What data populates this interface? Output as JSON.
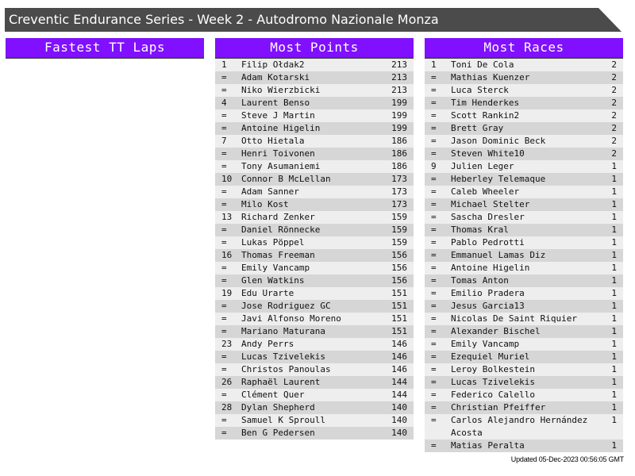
{
  "title": "Creventic Endurance Series - Week 2 - Autodromo Nazionale Monza",
  "colors": {
    "header_bg": "#8010ff",
    "title_bg": "#4b4b4b",
    "row_light": "#eeeeee",
    "row_dark": "#d6d6d6"
  },
  "panels": [
    {
      "title": "Fastest TT Laps",
      "rows": []
    },
    {
      "title": "Most Points",
      "rows": [
        {
          "rank": "1",
          "name": "Filip Ołdak2",
          "value": "213"
        },
        {
          "rank": "=",
          "name": "Adam Kotarski",
          "value": "213"
        },
        {
          "rank": "=",
          "name": "Niko Wierzbicki",
          "value": "213"
        },
        {
          "rank": "4",
          "name": "Laurent Benso",
          "value": "199"
        },
        {
          "rank": "=",
          "name": "Steve J Martin",
          "value": "199"
        },
        {
          "rank": "=",
          "name": "Antoine Higelin",
          "value": "199"
        },
        {
          "rank": "7",
          "name": "Otto Hietala",
          "value": "186"
        },
        {
          "rank": "=",
          "name": "Henri Toivonen",
          "value": "186"
        },
        {
          "rank": "=",
          "name": "Tony Asumaniemi",
          "value": "186"
        },
        {
          "rank": "10",
          "name": "Connor B McLellan",
          "value": "173"
        },
        {
          "rank": "=",
          "name": "Adam Sanner",
          "value": "173"
        },
        {
          "rank": "=",
          "name": "Milo Kost",
          "value": "173"
        },
        {
          "rank": "13",
          "name": "Richard Zenker",
          "value": "159"
        },
        {
          "rank": "=",
          "name": "Daniel Rönnecke",
          "value": "159"
        },
        {
          "rank": "=",
          "name": "Lukas Pöppel",
          "value": "159"
        },
        {
          "rank": "16",
          "name": "Thomas Freeman",
          "value": "156"
        },
        {
          "rank": "=",
          "name": "Emily Vancamp",
          "value": "156"
        },
        {
          "rank": "=",
          "name": "Glen Watkins",
          "value": "156"
        },
        {
          "rank": "19",
          "name": "Edu Urarte",
          "value": "151"
        },
        {
          "rank": "=",
          "name": "Jose Rodriguez GC",
          "value": "151"
        },
        {
          "rank": "=",
          "name": "Javi Alfonso Moreno",
          "value": "151"
        },
        {
          "rank": "=",
          "name": "Mariano Maturana",
          "value": "151"
        },
        {
          "rank": "23",
          "name": "Andy Perrs",
          "value": "146"
        },
        {
          "rank": "=",
          "name": "Lucas Tzivelekis",
          "value": "146"
        },
        {
          "rank": "=",
          "name": "Christos Panoulas",
          "value": "146"
        },
        {
          "rank": "26",
          "name": "Raphaël Laurent",
          "value": "144"
        },
        {
          "rank": "=",
          "name": "Clément Quer",
          "value": "144"
        },
        {
          "rank": "28",
          "name": "Dylan Shepherd",
          "value": "140"
        },
        {
          "rank": "=",
          "name": "Samuel K Sproull",
          "value": "140"
        },
        {
          "rank": "=",
          "name": "Ben G Pedersen",
          "value": "140"
        }
      ]
    },
    {
      "title": "Most Races",
      "rows": [
        {
          "rank": "1",
          "name": "Toni De Cola",
          "value": "2"
        },
        {
          "rank": "=",
          "name": "Mathias Kuenzer",
          "value": "2"
        },
        {
          "rank": "=",
          "name": "Luca Sterck",
          "value": "2"
        },
        {
          "rank": "=",
          "name": "Tim Henderkes",
          "value": "2"
        },
        {
          "rank": "=",
          "name": "Scott Rankin2",
          "value": "2"
        },
        {
          "rank": "=",
          "name": "Brett Gray",
          "value": "2"
        },
        {
          "rank": "=",
          "name": "Jason Dominic Beck",
          "value": "2"
        },
        {
          "rank": "=",
          "name": "Steven White10",
          "value": "2"
        },
        {
          "rank": "9",
          "name": "Julien Leger",
          "value": "1"
        },
        {
          "rank": "=",
          "name": "Heberley Telemaque",
          "value": "1"
        },
        {
          "rank": "=",
          "name": "Caleb Wheeler",
          "value": "1"
        },
        {
          "rank": "=",
          "name": "Michael Stelter",
          "value": "1"
        },
        {
          "rank": "=",
          "name": "Sascha Dresler",
          "value": "1"
        },
        {
          "rank": "=",
          "name": "Thomas Kral",
          "value": "1"
        },
        {
          "rank": "=",
          "name": "Pablo Pedrotti",
          "value": "1"
        },
        {
          "rank": "=",
          "name": "Emmanuel Lamas Diz",
          "value": "1"
        },
        {
          "rank": "=",
          "name": "Antoine Higelin",
          "value": "1"
        },
        {
          "rank": "=",
          "name": "Tomas Anton",
          "value": "1"
        },
        {
          "rank": "=",
          "name": "Emilio Pradera",
          "value": "1"
        },
        {
          "rank": "=",
          "name": "Jesus Garcia13",
          "value": "1"
        },
        {
          "rank": "=",
          "name": "Nicolas De Saint Riquier",
          "value": "1"
        },
        {
          "rank": "=",
          "name": "Alexander Bischel",
          "value": "1"
        },
        {
          "rank": "=",
          "name": "Emily Vancamp",
          "value": "1"
        },
        {
          "rank": "=",
          "name": "Ezequiel Muriel",
          "value": "1"
        },
        {
          "rank": "=",
          "name": "Leroy Bolkestein",
          "value": "1"
        },
        {
          "rank": "=",
          "name": "Lucas Tzivelekis",
          "value": "1"
        },
        {
          "rank": "=",
          "name": "Federico Calello",
          "value": "1"
        },
        {
          "rank": "=",
          "name": "Christian Pfeiffer",
          "value": "1"
        },
        {
          "rank": "=",
          "name": "Carlos Alejandro Hernández Acosta",
          "value": "1"
        },
        {
          "rank": "=",
          "name": "Matias Peralta",
          "value": "1"
        }
      ]
    }
  ],
  "footer": "Updated 05-Dec-2023 00:56:05 GMT"
}
